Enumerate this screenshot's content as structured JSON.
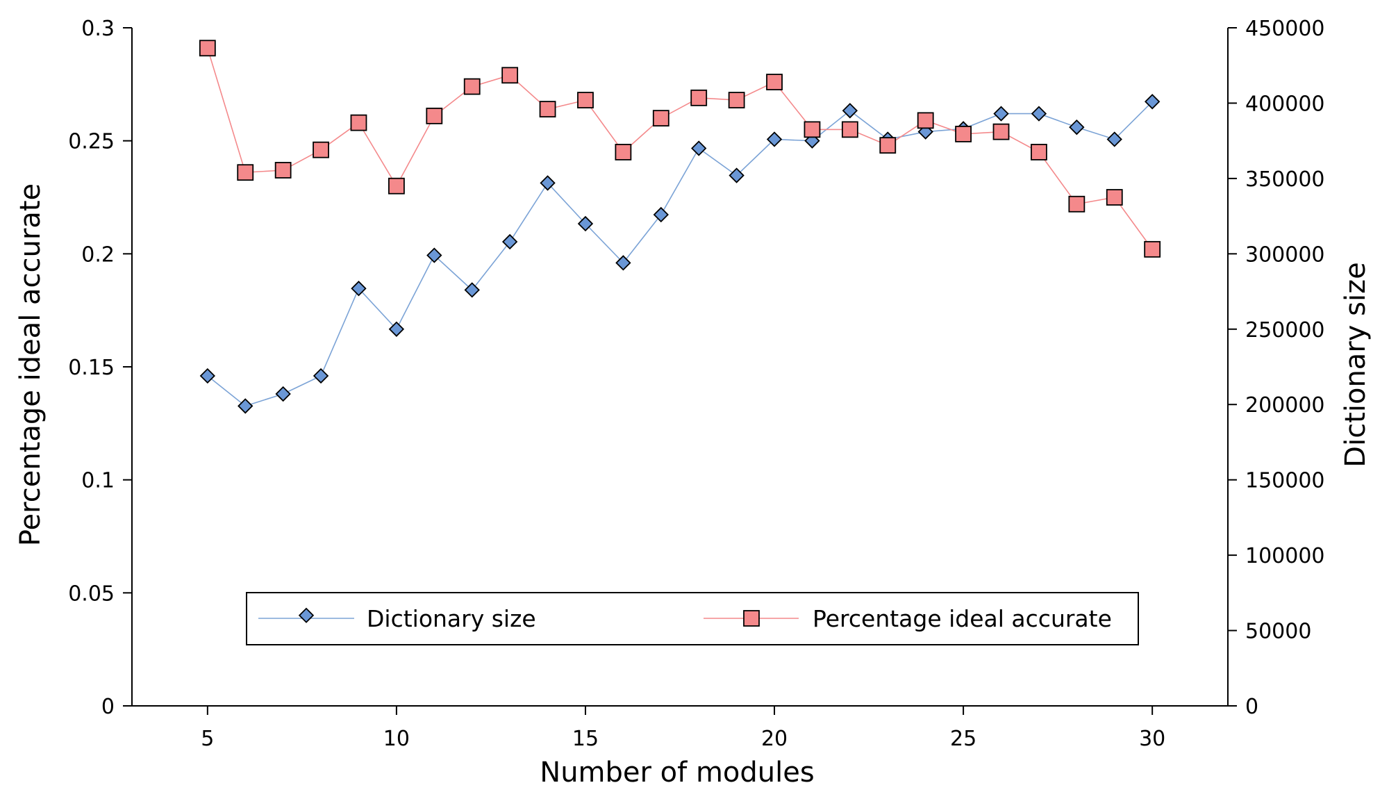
{
  "chart_data": {
    "type": "line",
    "xlabel": "Number of modules",
    "ylabel_left": "Percentage ideal accurate",
    "ylabel_right": "Dictionary size",
    "xlim": [
      3,
      32
    ],
    "ylim_left": [
      0,
      0.3
    ],
    "ylim_right": [
      0,
      450000
    ],
    "x_ticks": [
      5,
      10,
      15,
      20,
      25,
      30
    ],
    "y_left_ticks": [
      "0",
      "0.05",
      "0.1",
      "0.15",
      "0.2",
      "0.25",
      "0.3"
    ],
    "y_left_tick_values": [
      0,
      0.05,
      0.1,
      0.15,
      0.2,
      0.25,
      0.3
    ],
    "y_right_ticks": [
      "0",
      "50000",
      "100000",
      "150000",
      "200000",
      "250000",
      "300000",
      "350000",
      "400000",
      "450000"
    ],
    "y_right_tick_values": [
      0,
      50000,
      100000,
      150000,
      200000,
      250000,
      300000,
      350000,
      400000,
      450000
    ],
    "grid": false,
    "legend_position": "bottom-center",
    "x": [
      5,
      6,
      7,
      8,
      9,
      10,
      11,
      12,
      13,
      14,
      15,
      16,
      17,
      18,
      19,
      20,
      21,
      22,
      23,
      24,
      25,
      26,
      27,
      28,
      29,
      30
    ],
    "series": [
      {
        "name": "Dictionary size",
        "axis": "right",
        "marker": "diamond",
        "color": "#6a97d6",
        "line_color": "#7ba3d6",
        "values": [
          219000,
          199000,
          207000,
          219000,
          277000,
          250000,
          299000,
          276000,
          308000,
          347000,
          320000,
          294000,
          326000,
          370000,
          352000,
          376000,
          375000,
          395000,
          376000,
          381000,
          383000,
          393000,
          393000,
          384000,
          376000,
          401000
        ]
      },
      {
        "name": "Percentage ideal accurate",
        "axis": "left",
        "marker": "square",
        "color": "#f4898b",
        "line_color": "#f4898b",
        "values": [
          0.291,
          0.236,
          0.237,
          0.246,
          0.258,
          0.23,
          0.261,
          0.274,
          0.279,
          0.264,
          0.268,
          0.245,
          0.26,
          0.269,
          0.268,
          0.276,
          0.255,
          0.255,
          0.248,
          0.259,
          0.253,
          0.254,
          0.245,
          0.222,
          0.225,
          0.202
        ]
      }
    ]
  }
}
